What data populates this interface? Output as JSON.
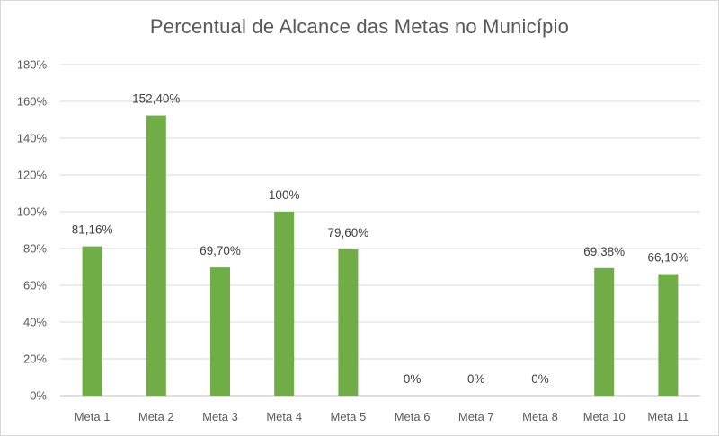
{
  "chart_data": {
    "type": "bar",
    "title": "Percentual de Alcance das Metas no Município",
    "categories": [
      "Meta 1",
      "Meta 2",
      "Meta 3",
      "Meta 4",
      "Meta 5",
      "Meta 6",
      "Meta 7",
      "Meta 8",
      "Meta 10",
      "Meta 11"
    ],
    "values": [
      81.16,
      152.4,
      69.7,
      100,
      79.6,
      0,
      0,
      0,
      69.38,
      66.1
    ],
    "data_labels": [
      "81,16%",
      "152,40%",
      "69,70%",
      "100%",
      "79,60%",
      "0%",
      "0%",
      "0%",
      "69,38%",
      "66,10%"
    ],
    "y_ticks": [
      "0%",
      "20%",
      "40%",
      "60%",
      "80%",
      "100%",
      "120%",
      "140%",
      "160%",
      "180%"
    ],
    "ylim": [
      0,
      180
    ],
    "xlabel": "",
    "ylabel": "",
    "grid": true,
    "legend": "none",
    "bar_color": "#70ad47"
  }
}
